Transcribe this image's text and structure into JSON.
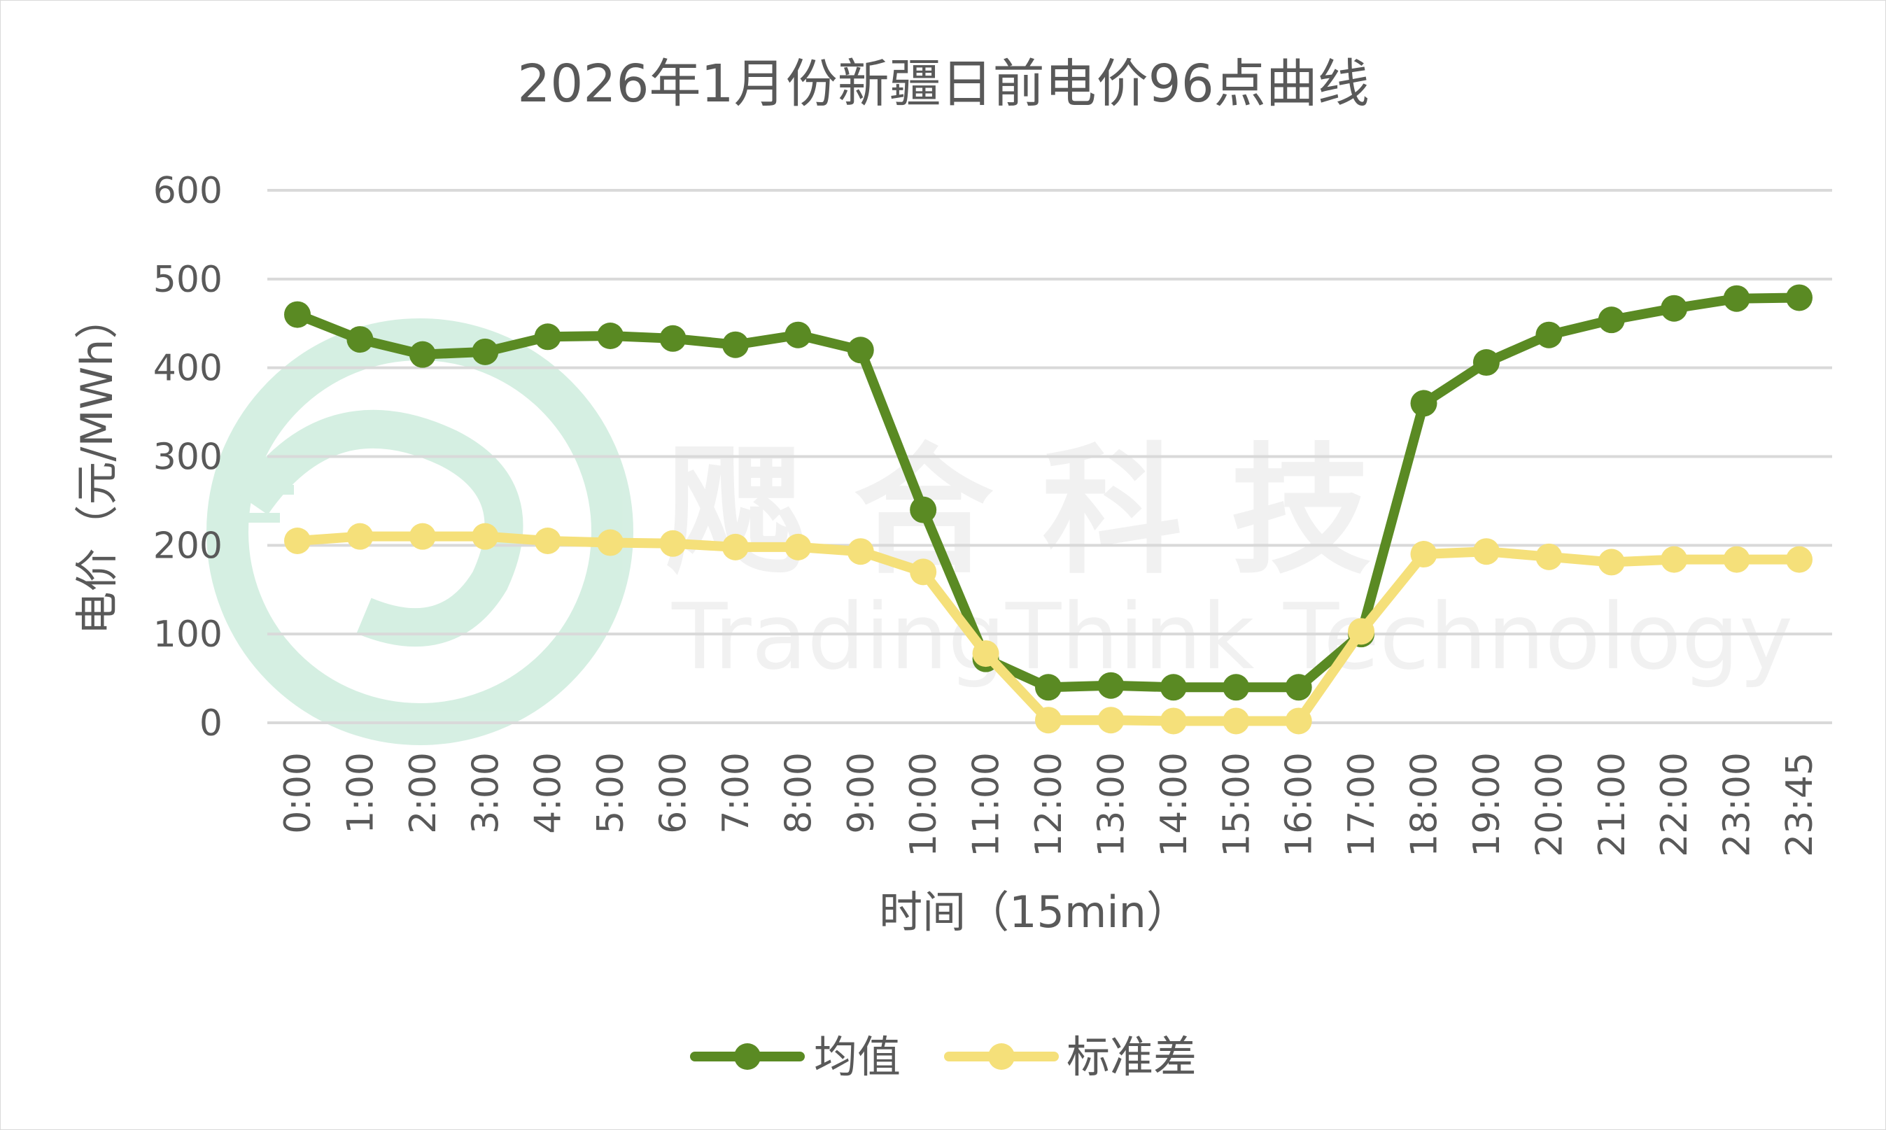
{
  "chart_data": {
    "type": "line",
    "title": "2026年1月份新疆日前电价96点曲线",
    "xlabel": "时间（15min）",
    "ylabel": "电价（元/MWh）",
    "ylim": [
      0,
      600
    ],
    "yticks": [
      "0",
      "100",
      "200",
      "300",
      "400",
      "500",
      "600"
    ],
    "grid": true,
    "legend_position": "bottom",
    "categories": [
      "0:00",
      "1:00",
      "2:00",
      "3:00",
      "4:00",
      "5:00",
      "6:00",
      "7:00",
      "8:00",
      "9:00",
      "10:00",
      "11:00",
      "12:00",
      "13:00",
      "14:00",
      "15:00",
      "16:00",
      "17:00",
      "18:00",
      "19:00",
      "20:00",
      "21:00",
      "22:00",
      "23:00",
      "23:45"
    ],
    "series": [
      {
        "name": "均值",
        "color": "#5a8a23",
        "values": [
          460,
          432,
          415,
          418,
          435,
          436,
          433,
          426,
          437,
          420,
          240,
          72,
          40,
          42,
          40,
          40,
          40,
          100,
          360,
          406,
          437,
          454,
          467,
          478,
          479
        ]
      },
      {
        "name": "标准差",
        "color": "#f5e07a",
        "values": [
          205,
          210,
          210,
          210,
          205,
          203,
          202,
          198,
          198,
          193,
          170,
          78,
          3,
          3,
          2,
          2,
          2,
          103,
          190,
          193,
          187,
          181,
          184,
          184,
          184
        ]
      }
    ]
  },
  "watermark": {
    "chinese": "飔 合 科 技",
    "english": "TradingThink Technology",
    "logo_color": "#a8dcc0"
  }
}
